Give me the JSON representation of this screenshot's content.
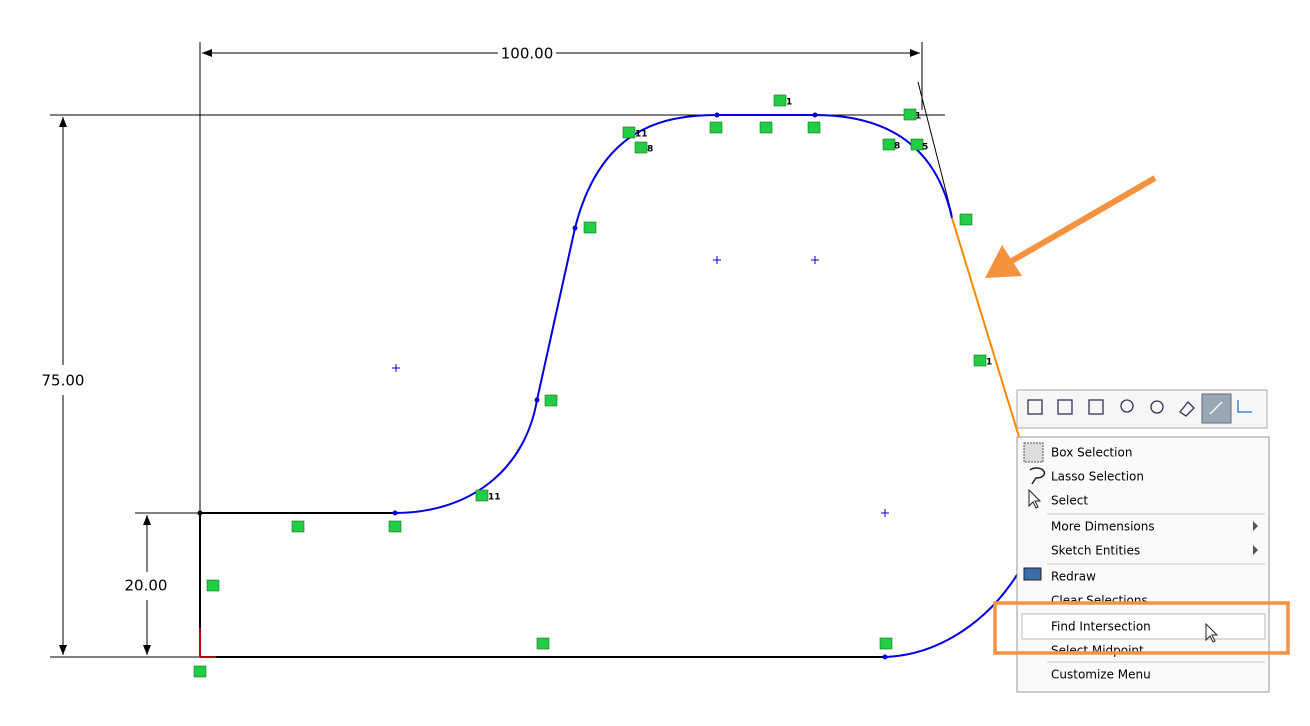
{
  "dimensions": [
    "100.00",
    "75.00",
    "20.00"
  ],
  "relation_labels": [
    "1",
    "11",
    "8",
    "8",
    "5",
    "1",
    "1",
    "11"
  ],
  "context_menu": {
    "items": [
      "Box Selection",
      "Lasso Selection",
      "Select",
      "More Dimensions",
      "Sketch Entities",
      "Redraw",
      "Clear Selections",
      "Find Intersection",
      "Select Midpoint",
      "Customize Menu"
    ]
  }
}
